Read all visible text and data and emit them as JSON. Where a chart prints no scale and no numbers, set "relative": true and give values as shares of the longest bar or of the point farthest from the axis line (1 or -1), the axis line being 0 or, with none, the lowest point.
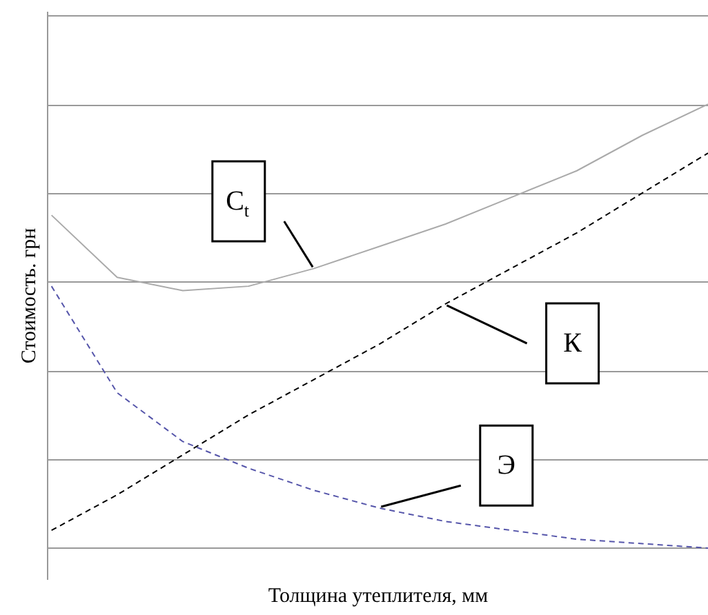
{
  "chart_data": {
    "type": "line",
    "relative": true,
    "xlabel": "Толщина утеплителя, мм",
    "ylabel": "Стоимость. грн",
    "grid": "y",
    "categories": [
      null,
      null,
      null,
      null,
      null,
      null,
      null,
      null,
      null,
      null,
      null
    ],
    "series": [
      {
        "name": "C$_{t}$",
        "color": "#aaaaaa",
        "line_style": "solid",
        "values": [
          0.75,
          0.61,
          0.58,
          0.59,
          0.63,
          0.68,
          0.73,
          0.79,
          0.85,
          0.93,
          1.0
        ]
      },
      {
        "name": "К",
        "color": "#000000",
        "line_style": "dashed",
        "values": [
          0.04,
          0.12,
          0.21,
          0.3,
          0.38,
          0.46,
          0.55,
          0.63,
          0.71,
          0.8,
          0.89
        ]
      },
      {
        "name": "Э",
        "color": "#5555aa",
        "line_style": "dashed",
        "values": [
          0.59,
          0.35,
          0.24,
          0.18,
          0.13,
          0.09,
          0.06,
          0.04,
          0.02,
          0.01,
          0.0
        ]
      }
    ]
  }
}
